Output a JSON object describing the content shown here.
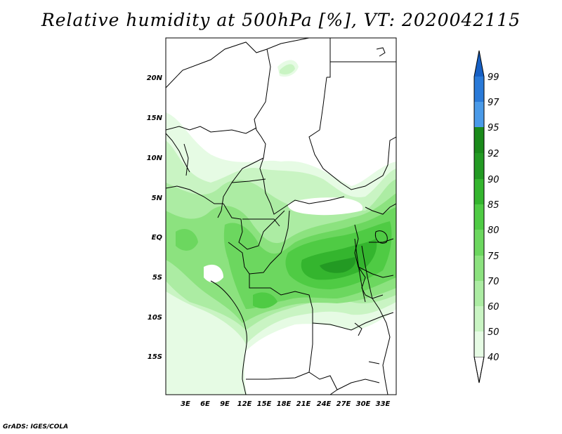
{
  "title": "Relative humidity at 500hPa [%], VT: 2020042115",
  "credit": "GrADS: IGES/COLA",
  "map": {
    "lat_labels": [
      "20N",
      "15N",
      "10N",
      "5N",
      "EQ",
      "5S",
      "10S",
      "15S"
    ],
    "lon_labels": [
      "3E",
      "6E",
      "9E",
      "12E",
      "15E",
      "18E",
      "21E",
      "24E",
      "27E",
      "30E",
      "33E"
    ],
    "field": "relative humidity",
    "level": "500hPa",
    "units": "%"
  },
  "colorbar": {
    "levels": [
      "40",
      "50",
      "60",
      "70",
      "75",
      "80",
      "85",
      "90",
      "92",
      "95",
      "97",
      "99"
    ],
    "colors": [
      "#ffffff",
      "#e6fbe4",
      "#c9f4c3",
      "#aceca3",
      "#8ce27f",
      "#6cd75f",
      "#4fcb44",
      "#34b52e",
      "#239a23",
      "#1a8a1a",
      "#4a9ae8",
      "#2a7ad8",
      "#1760c4"
    ]
  }
}
